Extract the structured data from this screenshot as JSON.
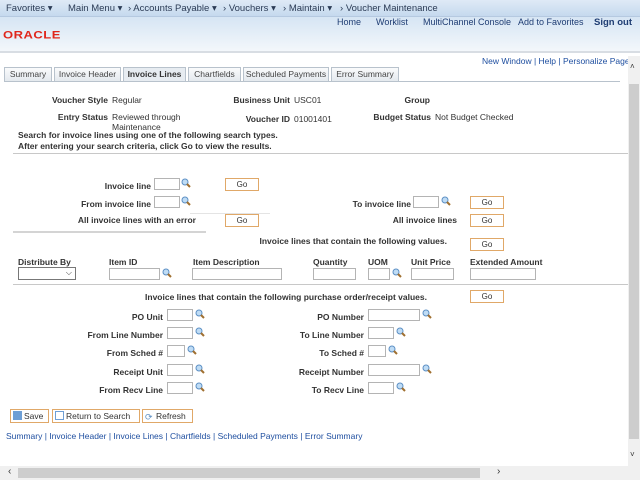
{
  "nav": {
    "favorites": "Favorites",
    "main_menu": "Main Menu",
    "accounts_payable": "Accounts Payable",
    "vouchers": "Vouchers",
    "maintain": "Maintain",
    "current": "Voucher Maintenance"
  },
  "header": {
    "links": [
      "Home",
      "Worklist",
      "MultiChannel Console",
      "Add to Favorites",
      "Sign out"
    ],
    "logo": "ORACLE"
  },
  "page_links": [
    "New Window",
    "Help",
    "Personalize Page"
  ],
  "tabs": [
    "Summary",
    "Invoice Header",
    "Invoice Lines",
    "Chartfields",
    "Scheduled Payments",
    "Error Summary"
  ],
  "active_tab": "Invoice Lines",
  "info": {
    "voucher_style_label": "Voucher Style",
    "voucher_style": "Regular",
    "business_unit_label": "Business Unit",
    "business_unit": "USC01",
    "group_label": "Group",
    "entry_status_label": "Entry Status",
    "entry_status_1": "Reviewed through",
    "entry_status_2": "Maintenance",
    "voucher_id_label": "Voucher ID",
    "voucher_id": "01001401",
    "budget_status_label": "Budget Status",
    "budget_status": "Not Budget Checked"
  },
  "instructions": [
    "Search for invoice lines using one of the following search types.",
    "After entering your search criteria, click Go to view the results."
  ],
  "search": {
    "invoice_line": "Invoice line",
    "from_invoice_line": "From invoice line",
    "to_invoice_line": "To invoice line",
    "all_error": "All invoice lines with an error",
    "all_lines": "All invoice lines",
    "contain_values": "Invoice lines that contain the following values.",
    "go": "Go",
    "contain_po": "Invoice lines that contain the following purchase order/receipt values."
  },
  "columns": [
    "Distribute By",
    "Item ID",
    "Item Description",
    "Quantity",
    "UOM",
    "Unit Price",
    "Extended Amount"
  ],
  "po_fields": {
    "left": [
      "PO Unit",
      "From Line Number",
      "From Sched #",
      "Receipt Unit",
      "From Recv Line"
    ],
    "right": [
      "PO Number",
      "To Line Number",
      "To Sched #",
      "Receipt Number",
      "To Recv Line"
    ]
  },
  "buttons": {
    "save": "Save",
    "return": "Return to Search",
    "refresh": "Refresh"
  },
  "bottom_links": [
    "Summary",
    "Invoice Header",
    "Invoice Lines",
    "Chartfields",
    "Scheduled Payments",
    "Error Summary"
  ]
}
